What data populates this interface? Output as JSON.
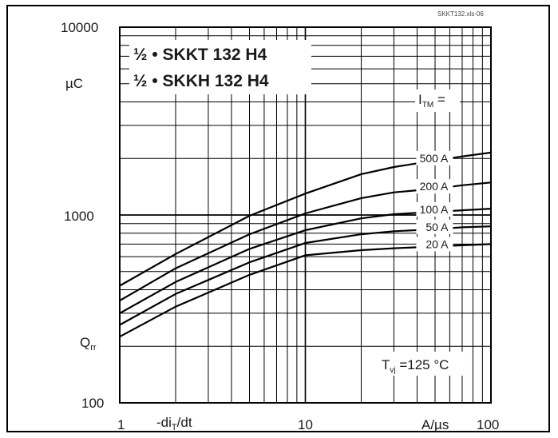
{
  "chart_data": {
    "type": "line",
    "x_scale": "log",
    "y_scale": "log",
    "xlim": [
      1,
      100
    ],
    "ylim": [
      100,
      10000
    ],
    "grid": true,
    "reference": "SKKT132.xls-06",
    "title_lines": [
      "½ • SKKT 132 H4",
      "½ • SKKH 132 H4"
    ],
    "y_unit": "µC",
    "y_symbol": "Q",
    "y_symbol_sub": "rr",
    "x_symbol": "-di",
    "x_symbol_sub": "T",
    "x_symbol_tail": "/dt",
    "x_unit": "A/µs",
    "legend_title": "I",
    "legend_title_sub": "TM",
    "legend_title_tail": " =",
    "condition_main": "T",
    "condition_sub": "vj",
    "condition_tail": " =125 °C",
    "x_ticks": [
      "1",
      "10",
      "100"
    ],
    "y_ticks": [
      "100",
      "1000",
      "10000"
    ],
    "series": [
      {
        "name": "500 A",
        "x": [
          1,
          2,
          5,
          10,
          20,
          30,
          50,
          70,
          100
        ],
        "y": [
          420,
          620,
          990,
          1300,
          1650,
          1800,
          1950,
          2050,
          2150
        ]
      },
      {
        "name": "200 A",
        "x": [
          1,
          2,
          5,
          10,
          20,
          30,
          50,
          70,
          100
        ],
        "y": [
          350,
          520,
          790,
          1020,
          1230,
          1320,
          1380,
          1440,
          1490
        ]
      },
      {
        "name": "100 A",
        "x": [
          1,
          2,
          5,
          10,
          20,
          30,
          50,
          70,
          100
        ],
        "y": [
          300,
          440,
          660,
          830,
          960,
          1010,
          1040,
          1060,
          1080
        ]
      },
      {
        "name": "50 A",
        "x": [
          1,
          2,
          5,
          10,
          20,
          30,
          50,
          70,
          100
        ],
        "y": [
          260,
          380,
          560,
          710,
          790,
          820,
          840,
          860,
          870
        ]
      },
      {
        "name": "20 A",
        "x": [
          1,
          2,
          5,
          10,
          20,
          30,
          50,
          70,
          100
        ],
        "y": [
          225,
          325,
          480,
          610,
          650,
          665,
          680,
          690,
          700
        ]
      }
    ]
  }
}
